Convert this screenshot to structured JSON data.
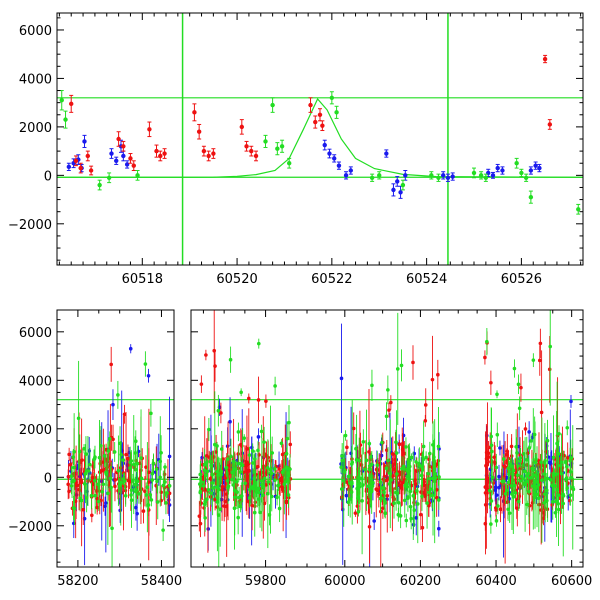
{
  "chart_data": [
    {
      "type": "scatter",
      "panel": "top",
      "x_range": [
        60516.2,
        60527.3
      ],
      "y_range": [
        -3700,
        6700
      ],
      "x_ticks": [
        60518,
        60520,
        60522,
        60524,
        60526
      ],
      "x_tick_labels": [
        "60518",
        "60520",
        "60522",
        "60524",
        "60526"
      ],
      "y_ticks": [
        -2000,
        0,
        2000,
        4000,
        6000
      ],
      "y_tick_labels": [
        "−2000",
        "0",
        "2000",
        "4000",
        "6000"
      ],
      "hlines": [
        3200,
        -80
      ],
      "vlines": [
        60518.85,
        60524.45
      ],
      "model_curve": {
        "color": "#22dd22",
        "points": [
          [
            60516.2,
            -80
          ],
          [
            60519,
            -80
          ],
          [
            60519.5,
            -75
          ],
          [
            60520,
            -40
          ],
          [
            60520.4,
            30
          ],
          [
            60520.8,
            200
          ],
          [
            60521.1,
            700
          ],
          [
            60521.4,
            1900
          ],
          [
            60521.7,
            3150
          ],
          [
            60521.9,
            2700
          ],
          [
            60522.2,
            1500
          ],
          [
            60522.5,
            700
          ],
          [
            60522.9,
            280
          ],
          [
            60523.5,
            40
          ],
          [
            60524.2,
            -50
          ],
          [
            60527.3,
            -80
          ]
        ]
      },
      "series": [
        {
          "color": "#1a1aee",
          "points": [
            [
              60516.45,
              350,
              150
            ],
            [
              60516.55,
              500,
              180
            ],
            [
              60516.65,
              650,
              200
            ],
            [
              60516.72,
              300,
              150
            ],
            [
              60516.78,
              1400,
              250
            ],
            [
              60517.35,
              900,
              200
            ],
            [
              60517.45,
              600,
              150
            ],
            [
              60517.55,
              1200,
              250
            ],
            [
              60517.6,
              800,
              200
            ],
            [
              60517.68,
              450,
              150
            ],
            [
              60521.85,
              1250,
              200
            ],
            [
              60521.95,
              900,
              180
            ],
            [
              60522.05,
              700,
              150
            ],
            [
              60522.15,
              400,
              150
            ],
            [
              60522.3,
              0,
              150
            ],
            [
              60522.4,
              200,
              150
            ],
            [
              60523.15,
              900,
              150
            ],
            [
              60523.3,
              -600,
              250
            ],
            [
              60523.38,
              -250,
              200
            ],
            [
              60523.45,
              -700,
              250
            ],
            [
              60523.55,
              0,
              200
            ],
            [
              60524.35,
              0,
              150
            ],
            [
              60524.45,
              -100,
              150
            ],
            [
              60524.55,
              -50,
              150
            ],
            [
              60525.3,
              100,
              150
            ],
            [
              60525.4,
              0,
              120
            ],
            [
              60525.5,
              300,
              150
            ],
            [
              60525.6,
              200,
              150
            ],
            [
              60526.2,
              200,
              150
            ],
            [
              60526.3,
              400,
              150
            ],
            [
              60526.38,
              300,
              150
            ]
          ]
        },
        {
          "color": "#ee1111",
          "points": [
            [
              60516.5,
              2950,
              350
            ],
            [
              60516.6,
              600,
              200
            ],
            [
              60516.7,
              300,
              200
            ],
            [
              60516.85,
              800,
              200
            ],
            [
              60516.92,
              200,
              180
            ],
            [
              60517.5,
              1500,
              300
            ],
            [
              60517.6,
              1200,
              200
            ],
            [
              60517.75,
              700,
              200
            ],
            [
              60517.82,
              400,
              200
            ],
            [
              60518.15,
              1900,
              300
            ],
            [
              60518.3,
              1000,
              250
            ],
            [
              60518.38,
              800,
              200
            ],
            [
              60518.47,
              900,
              200
            ],
            [
              60519.1,
              2600,
              350
            ],
            [
              60519.2,
              1800,
              300
            ],
            [
              60519.3,
              1000,
              200
            ],
            [
              60519.4,
              800,
              200
            ],
            [
              60519.5,
              900,
              200
            ],
            [
              60520.1,
              2000,
              300
            ],
            [
              60520.2,
              1200,
              200
            ],
            [
              60520.3,
              1000,
              200
            ],
            [
              60520.4,
              800,
              200
            ],
            [
              60521.55,
              2900,
              300
            ],
            [
              60521.65,
              2200,
              250
            ],
            [
              60521.75,
              2500,
              250
            ],
            [
              60521.8,
              2050,
              200
            ],
            [
              60526.5,
              4800,
              150
            ],
            [
              60526.6,
              2100,
              200
            ]
          ]
        },
        {
          "color": "#22dd22",
          "points": [
            [
              60516.3,
              3100,
              400
            ],
            [
              60516.38,
              2300,
              350
            ],
            [
              60517.1,
              -400,
              200
            ],
            [
              60517.3,
              -100,
              200
            ],
            [
              60517.9,
              0,
              200
            ],
            [
              60520.6,
              1400,
              250
            ],
            [
              60520.75,
              2900,
              300
            ],
            [
              60520.85,
              1100,
              250
            ],
            [
              60520.95,
              1200,
              250
            ],
            [
              60521.1,
              500,
              200
            ],
            [
              60522.0,
              3200,
              250
            ],
            [
              60522.1,
              2600,
              250
            ],
            [
              60522.85,
              -100,
              150
            ],
            [
              60523.0,
              0,
              150
            ],
            [
              60523.5,
              -400,
              200
            ],
            [
              60524.1,
              0,
              150
            ],
            [
              60524.25,
              -100,
              150
            ],
            [
              60525.0,
              100,
              200
            ],
            [
              60525.15,
              0,
              150
            ],
            [
              60525.25,
              -100,
              150
            ],
            [
              60525.9,
              500,
              200
            ],
            [
              60526.0,
              100,
              150
            ],
            [
              60526.1,
              -100,
              150
            ],
            [
              60526.2,
              -900,
              250
            ],
            [
              60527.2,
              -1400,
              200
            ]
          ]
        }
      ]
    },
    {
      "type": "scatter",
      "panel": "bottom",
      "y_range": [
        -3700,
        6900
      ],
      "y_ticks": [
        -2000,
        0,
        2000,
        4000,
        6000
      ],
      "y_tick_labels": [
        "−2000",
        "0",
        "2000",
        "4000",
        "6000"
      ],
      "hlines": [
        3200,
        -80
      ],
      "segments": [
        {
          "x_range": [
            58150,
            58430
          ],
          "x_ticks": [
            58200,
            58400
          ],
          "x_tick_labels": [
            "58200",
            "58400"
          ]
        },
        {
          "x_range": [
            59620,
            59900
          ],
          "x_ticks": [
            59800
          ],
          "x_tick_labels": [
            "59800"
          ]
        },
        {
          "x_range": [
            59900,
            60630
          ],
          "x_ticks": [
            60000,
            60200,
            60400,
            60600
          ],
          "x_tick_labels": [
            "60000",
            "60200",
            "60400",
            "60600"
          ]
        }
      ],
      "season_ranges": [
        [
          58175,
          58420
        ],
        [
          59640,
          59860
        ],
        [
          59990,
          60250
        ],
        [
          60370,
          60605
        ]
      ]
    }
  ]
}
